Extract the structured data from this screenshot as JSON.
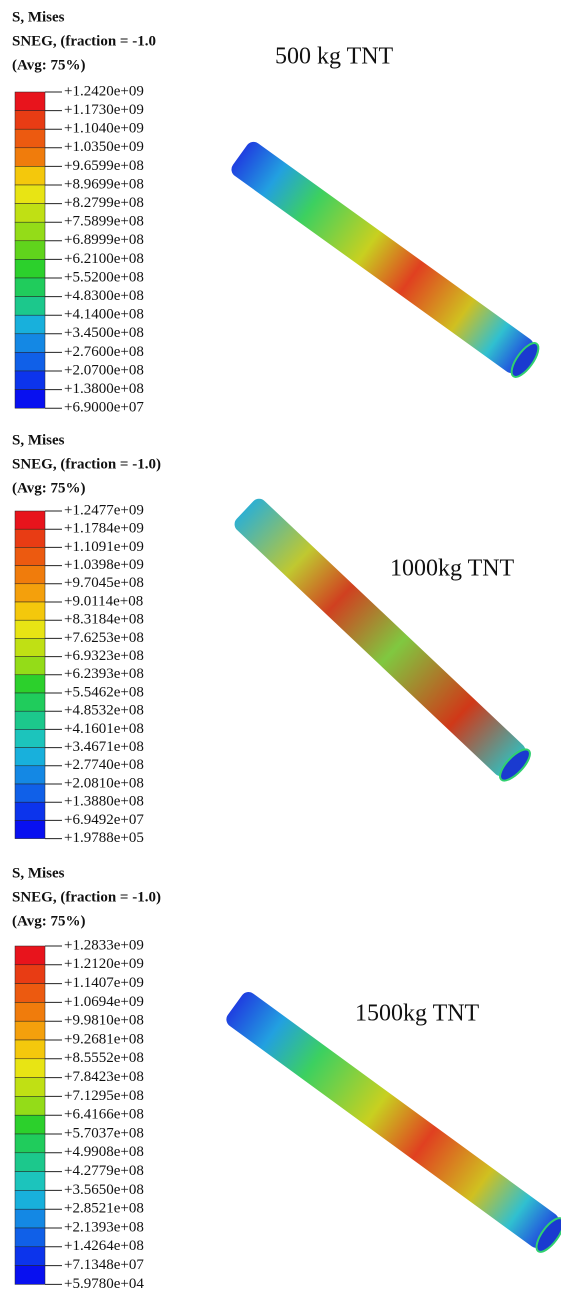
{
  "panels": [
    {
      "header": [
        "S, Mises",
        "SNEG, (fraction = -1.0",
        "(Avg: 75%)"
      ],
      "caption": "500 kg TNT",
      "legend": [
        "+1.2420e+09",
        "+1.1730e+09",
        "+1.1040e+09",
        "+1.0350e+09",
        "+9.6599e+08",
        "+8.9699e+08",
        "+8.2799e+08",
        "+7.5899e+08",
        "+6.8999e+08",
        "+6.2100e+08",
        "+5.5200e+08",
        "+4.8300e+08",
        "+4.1400e+08",
        "+3.4500e+08",
        "+2.7600e+08",
        "+2.0700e+08",
        "+1.3800e+08",
        "+6.9000e+07"
      ]
    },
    {
      "header": [
        "S, Mises",
        "SNEG, (fraction = -1.0)",
        "(Avg: 75%)"
      ],
      "caption": "1000kg TNT",
      "legend": [
        "+1.2477e+09",
        "+1.1784e+09",
        "+1.1091e+09",
        "+1.0398e+09",
        "+9.7045e+08",
        "+9.0114e+08",
        "+8.3184e+08",
        "+7.6253e+08",
        "+6.9323e+08",
        "+6.2393e+08",
        "+5.5462e+08",
        "+4.8532e+08",
        "+4.1601e+08",
        "+3.4671e+08",
        "+2.7740e+08",
        "+2.0810e+08",
        "+1.3880e+08",
        "+6.9492e+07",
        "+1.9788e+05"
      ]
    },
    {
      "header": [
        "S, Mises",
        "SNEG, (fraction = -1.0)",
        "(Avg: 75%)"
      ],
      "caption": "1500kg TNT",
      "legend": [
        "+1.2833e+09",
        "+1.2120e+09",
        "+1.1407e+09",
        "+1.0694e+09",
        "+9.9810e+08",
        "+9.2681e+08",
        "+8.5552e+08",
        "+7.8423e+08",
        "+7.1295e+08",
        "+6.4166e+08",
        "+5.7037e+08",
        "+4.9908e+08",
        "+4.2779e+08",
        "+3.5650e+08",
        "+2.8521e+08",
        "+2.1393e+08",
        "+1.4264e+08",
        "+7.1348e+07",
        "+5.9780e+04"
      ]
    }
  ]
}
